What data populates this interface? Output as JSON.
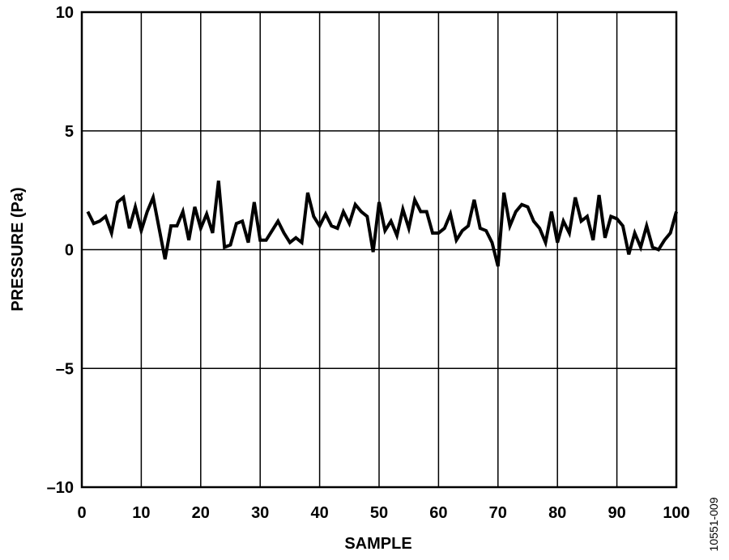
{
  "chart_data": {
    "type": "line",
    "xlabel": "SAMPLE",
    "ylabel": "PRESSURE (Pa)",
    "annotation": "10551-009",
    "x": [
      1,
      2,
      3,
      4,
      5,
      6,
      7,
      8,
      9,
      10,
      11,
      12,
      13,
      14,
      15,
      16,
      17,
      18,
      19,
      20,
      21,
      22,
      23,
      24,
      25,
      26,
      27,
      28,
      29,
      30,
      31,
      32,
      33,
      34,
      35,
      36,
      37,
      38,
      39,
      40,
      41,
      42,
      43,
      44,
      45,
      46,
      47,
      48,
      49,
      50,
      51,
      52,
      53,
      54,
      55,
      56,
      57,
      58,
      59,
      60,
      61,
      62,
      63,
      64,
      65,
      66,
      67,
      68,
      69,
      70,
      71,
      72,
      73,
      74,
      75,
      76,
      77,
      78,
      79,
      80,
      81,
      82,
      83,
      84,
      85,
      86,
      87,
      88,
      89,
      90,
      91,
      92,
      93,
      94,
      95,
      96,
      97,
      98,
      99,
      100
    ],
    "series": [
      {
        "name": "Pressure",
        "color": "#000000",
        "values": [
          1.6,
          1.1,
          1.2,
          1.4,
          0.7,
          2.0,
          2.2,
          0.9,
          1.8,
          0.8,
          1.6,
          2.2,
          0.9,
          -0.4,
          1.0,
          1.0,
          1.6,
          0.4,
          1.8,
          0.9,
          1.5,
          0.7,
          2.9,
          0.1,
          0.2,
          1.1,
          1.2,
          0.3,
          2.0,
          0.4,
          0.4,
          0.8,
          1.2,
          0.7,
          0.3,
          0.5,
          0.3,
          2.4,
          1.4,
          1.0,
          1.5,
          1.0,
          0.9,
          1.6,
          1.1,
          1.9,
          1.6,
          1.4,
          -0.1,
          2.0,
          0.8,
          1.2,
          0.6,
          1.7,
          0.9,
          2.1,
          1.6,
          1.6,
          0.7,
          0.7,
          0.9,
          1.5,
          0.4,
          0.8,
          1.0,
          2.1,
          0.9,
          0.8,
          0.3,
          -0.7,
          2.4,
          1.0,
          1.6,
          1.9,
          1.8,
          1.2,
          0.9,
          0.3,
          1.6,
          0.3,
          1.2,
          0.7,
          2.2,
          1.2,
          1.4,
          0.4,
          2.3,
          0.5,
          1.4,
          1.3,
          1.0,
          -0.2,
          0.7,
          0.1,
          1.0,
          0.1,
          0.0,
          0.4,
          0.7,
          1.6
        ]
      }
    ],
    "xlim": [
      0,
      100
    ],
    "xticks": [
      0,
      10,
      20,
      30,
      40,
      50,
      60,
      70,
      80,
      90,
      100
    ],
    "ylim": [
      -10,
      10
    ],
    "yticks": [
      {
        "value": -10,
        "label": "–10"
      },
      {
        "value": -5,
        "label": "–5"
      },
      0,
      5,
      10
    ],
    "grid": true
  }
}
